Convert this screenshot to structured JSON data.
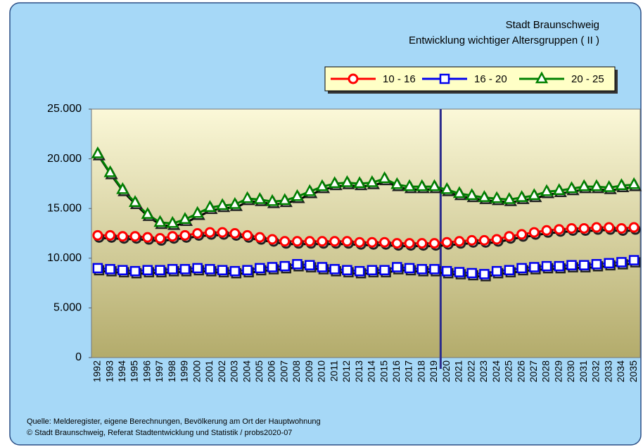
{
  "chart_data": {
    "type": "line",
    "title": "Stadt Braunschweig",
    "subtitle": "Entwicklung wichtiger Altersgruppen ( II )",
    "source": "Quelle: Melderegister, eigene Berechnungen, Bevölkerung am Ort der Hauptwohnung",
    "copyright": "© Stadt Braunschweig, Referat Stadtentwicklung und Statistik / probs2020-07",
    "categories": [
      "1992",
      "1993",
      "1994",
      "1995",
      "1996",
      "1997",
      "1998",
      "1999",
      "2000",
      "2001",
      "2002",
      "2003",
      "2004",
      "2005",
      "2006",
      "2007",
      "2008",
      "2009",
      "2010",
      "2011",
      "2012",
      "2013",
      "2014",
      "2015",
      "2016",
      "2017",
      "2018",
      "2019",
      "2020",
      "2021",
      "2022",
      "2023",
      "2024",
      "2025",
      "2026",
      "2027",
      "2028",
      "2029",
      "2030",
      "2031",
      "2032",
      "2033",
      "2034",
      "2035"
    ],
    "series": [
      {
        "name": "10 - 16",
        "color": "#ff0000",
        "marker": "circle",
        "values": [
          12300,
          12300,
          12200,
          12200,
          12100,
          12000,
          12200,
          12300,
          12500,
          12600,
          12600,
          12500,
          12300,
          12100,
          11900,
          11700,
          11700,
          11700,
          11700,
          11700,
          11700,
          11600,
          11600,
          11600,
          11500,
          11500,
          11500,
          11500,
          11600,
          11700,
          11800,
          11800,
          11900,
          12200,
          12400,
          12600,
          12800,
          12900,
          13000,
          13000,
          13100,
          13100,
          13000,
          13100
        ]
      },
      {
        "name": "16 - 20",
        "color": "#0000ee",
        "marker": "square",
        "values": [
          9000,
          8900,
          8800,
          8700,
          8800,
          8800,
          8900,
          8900,
          9000,
          8900,
          8800,
          8700,
          8800,
          9000,
          9100,
          9200,
          9400,
          9300,
          9100,
          8900,
          8800,
          8700,
          8800,
          8800,
          9100,
          9000,
          8900,
          8900,
          8700,
          8600,
          8500,
          8400,
          8700,
          8800,
          9000,
          9100,
          9200,
          9200,
          9300,
          9300,
          9400,
          9500,
          9600,
          9800
        ]
      },
      {
        "name": "20 - 25",
        "color": "#008000",
        "marker": "triangle",
        "values": [
          20500,
          18600,
          16900,
          15600,
          14400,
          13600,
          13500,
          13900,
          14500,
          15100,
          15300,
          15400,
          16000,
          15900,
          15700,
          15800,
          16200,
          16700,
          17200,
          17500,
          17600,
          17500,
          17600,
          18000,
          17400,
          17200,
          17200,
          17200,
          16900,
          16500,
          16300,
          16100,
          16000,
          15900,
          16100,
          16300,
          16700,
          16800,
          17000,
          17200,
          17200,
          17100,
          17300,
          17400
        ]
      }
    ],
    "ylim": [
      0,
      25000
    ],
    "yticks": [
      0,
      {
        "value": 5000,
        "label": "5.000"
      },
      {
        "value": 10000,
        "label": "10.000"
      },
      {
        "value": 15000,
        "label": "15.000"
      },
      {
        "value": 20000,
        "label": "20.000"
      },
      {
        "value": 25000,
        "label": "25.000"
      }
    ],
    "grid": false
  }
}
